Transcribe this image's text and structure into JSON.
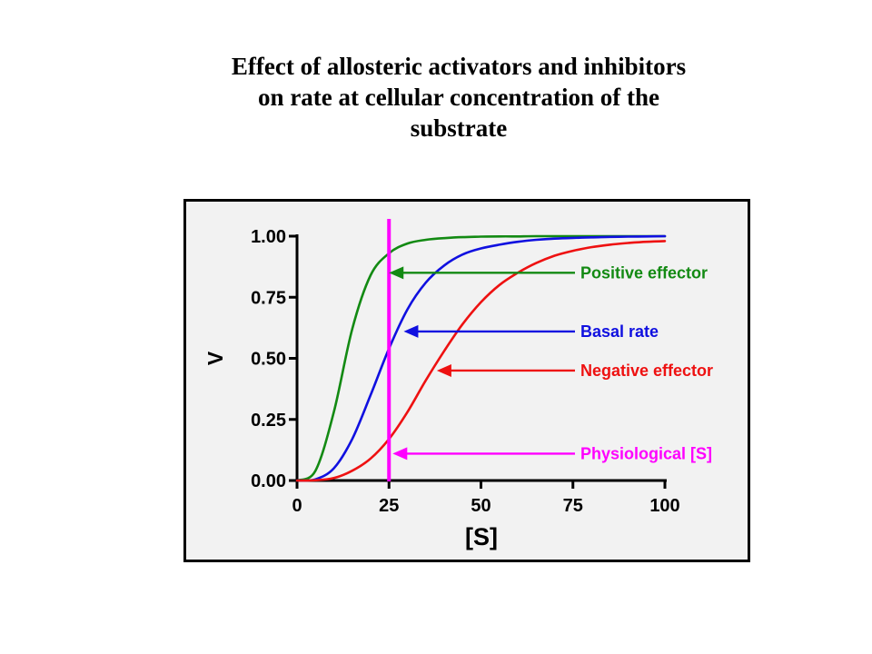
{
  "slide": {
    "title_lines": [
      "Effect of allosteric activators and inhibitors",
      "on rate at cellular concentration of the",
      "substrate"
    ]
  },
  "chart_data": {
    "type": "line",
    "title": "",
    "xlabel": "[S]",
    "ylabel": "V",
    "xlim": [
      0,
      100
    ],
    "ylim": [
      0,
      1
    ],
    "xticks": [
      0,
      25,
      50,
      75,
      100
    ],
    "xtick_labels": [
      "0",
      "25",
      "50",
      "75",
      "100"
    ],
    "yticks": [
      0,
      0.25,
      0.5,
      0.75,
      1.0
    ],
    "ytick_labels": [
      "0.00",
      "0.25",
      "0.50",
      "0.75",
      "1.00"
    ],
    "grid": false,
    "x": [
      0,
      5,
      10,
      15,
      20,
      25,
      30,
      35,
      40,
      45,
      50,
      55,
      60,
      65,
      70,
      75,
      80,
      85,
      90,
      95,
      100
    ],
    "series": [
      {
        "name": "Positive effector",
        "color": "#138a13",
        "values": [
          0,
          0.04,
          0.28,
          0.62,
          0.84,
          0.93,
          0.97,
          0.985,
          0.992,
          0.996,
          0.998,
          0.999,
          0.999,
          1.0,
          1.0,
          1.0,
          1.0,
          1.0,
          1.0,
          1.0,
          1.0
        ]
      },
      {
        "name": "Basal rate",
        "color": "#1010e0",
        "values": [
          0,
          0.005,
          0.05,
          0.17,
          0.35,
          0.54,
          0.7,
          0.81,
          0.88,
          0.925,
          0.95,
          0.965,
          0.977,
          0.985,
          0.99,
          0.993,
          0.995,
          0.997,
          0.998,
          0.999,
          1.0
        ]
      },
      {
        "name": "Negative effector",
        "color": "#ee1111",
        "values": [
          0,
          0.001,
          0.01,
          0.04,
          0.09,
          0.17,
          0.28,
          0.41,
          0.53,
          0.64,
          0.73,
          0.8,
          0.85,
          0.89,
          0.92,
          0.94,
          0.955,
          0.965,
          0.972,
          0.977,
          0.98
        ]
      }
    ],
    "reference_line": {
      "name": "Physiological [S]",
      "x": 25,
      "color": "#ff00ff"
    },
    "annotations": [
      {
        "label": "Positive effector",
        "color": "#138a13",
        "target_x": 25,
        "target_y": 0.85,
        "text_y": 0.85
      },
      {
        "label": "Basal rate",
        "color": "#1010e0",
        "target_x": 29,
        "target_y": 0.61,
        "text_y": 0.61
      },
      {
        "label": "Negative effector",
        "color": "#ee1111",
        "target_x": 38,
        "target_y": 0.45,
        "text_y": 0.45
      },
      {
        "label": "Physiological [S]",
        "color": "#ff00ff",
        "target_x": 26,
        "target_y": 0.11,
        "text_y": 0.11
      }
    ]
  }
}
